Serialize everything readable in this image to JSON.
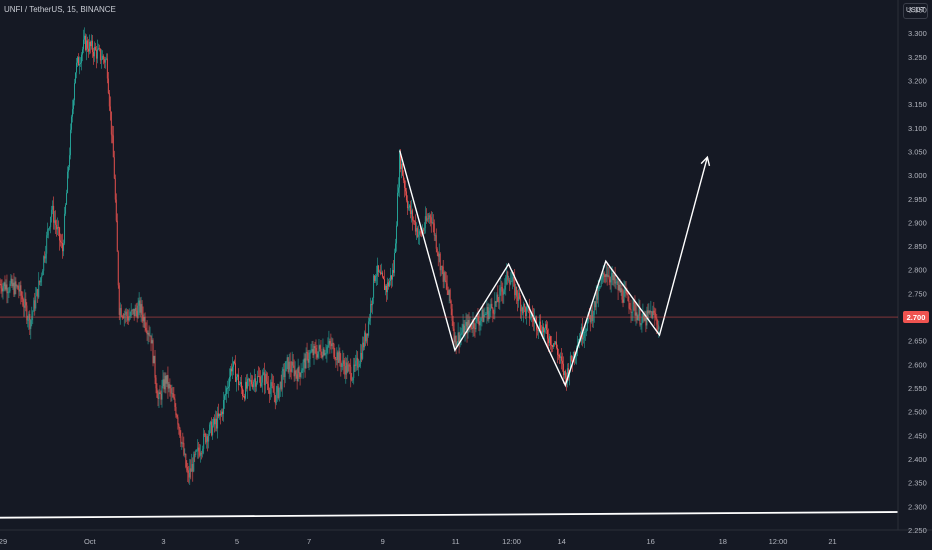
{
  "header": {
    "symbol": "UNFI / TetherUS",
    "interval": "15",
    "exchange": "BINANCE",
    "text": "UNFI / TetherUS, 15, BINANCE"
  },
  "currency": "USDT",
  "colors": {
    "background": "#151924",
    "up": "#26a69a",
    "down": "#ef5350",
    "price_line": "#ef5350",
    "drawing": "#ffffff",
    "axis_text": "#b2b5be"
  },
  "chart_data": {
    "type": "candlestick",
    "title": "",
    "xlabel": "",
    "ylabel": "",
    "ylim": [
      2.25,
      3.37
    ],
    "xlim": [
      0,
      122
    ],
    "grid": false,
    "y_ticks": [
      "3.350",
      "3.300",
      "3.250",
      "3.200",
      "3.150",
      "3.100",
      "3.050",
      "3.000",
      "2.950",
      "2.900",
      "2.850",
      "2.800",
      "2.750",
      "2.700",
      "2.650",
      "2.600",
      "2.550",
      "2.500",
      "2.450",
      "2.400",
      "2.350",
      "2.300",
      "2.250"
    ],
    "x_ticks": [
      {
        "label": "29",
        "x": 0.4
      },
      {
        "label": "Oct",
        "x": 12.2
      },
      {
        "label": "3",
        "x": 22.2
      },
      {
        "label": "5",
        "x": 32.2
      },
      {
        "label": "7",
        "x": 42.0
      },
      {
        "label": "9",
        "x": 52.0
      },
      {
        "label": "11",
        "x": 61.9
      },
      {
        "label": "12:00",
        "x": 69.5
      },
      {
        "label": "14",
        "x": 76.3
      },
      {
        "label": "16",
        "x": 88.4
      },
      {
        "label": "18",
        "x": 98.2
      },
      {
        "label": "12:00",
        "x": 105.7
      },
      {
        "label": "21",
        "x": 113.1
      }
    ],
    "last_price": {
      "value": 2.7,
      "label": "2.700"
    },
    "support_line": [
      [
        0,
        2.276
      ],
      [
        122,
        2.288
      ]
    ],
    "pattern_path": [
      [
        54.3,
        3.052
      ],
      [
        61.8,
        2.63
      ],
      [
        69.1,
        2.812
      ],
      [
        76.8,
        2.556
      ],
      [
        82.3,
        2.818
      ],
      [
        89.6,
        2.662
      ],
      [
        96.1,
        3.038
      ]
    ],
    "arrow_tip": [
      96.1,
      3.038
    ],
    "price_path": [
      [
        0,
        2.77
      ],
      [
        2.5,
        2.76
      ],
      [
        4.1,
        2.69
      ],
      [
        5.5,
        2.78
      ],
      [
        7.0,
        2.93
      ],
      [
        8.5,
        2.84
      ],
      [
        9.4,
        3.04
      ],
      [
        10.2,
        3.22
      ],
      [
        11.5,
        3.28
      ],
      [
        13.0,
        3.26
      ],
      [
        14.5,
        3.24
      ],
      [
        15.5,
        3.01
      ],
      [
        16.2,
        2.72
      ],
      [
        17.5,
        2.7
      ],
      [
        19.0,
        2.72
      ],
      [
        20.5,
        2.66
      ],
      [
        21.5,
        2.52
      ],
      [
        22.5,
        2.57
      ],
      [
        24.0,
        2.5
      ],
      [
        25.5,
        2.36
      ],
      [
        26.5,
        2.4
      ],
      [
        28.0,
        2.45
      ],
      [
        30.0,
        2.49
      ],
      [
        31.5,
        2.6
      ],
      [
        33.0,
        2.54
      ],
      [
        34.5,
        2.57
      ],
      [
        36.0,
        2.57
      ],
      [
        37.5,
        2.53
      ],
      [
        39.0,
        2.6
      ],
      [
        40.5,
        2.58
      ],
      [
        42.0,
        2.62
      ],
      [
        43.5,
        2.63
      ],
      [
        45.0,
        2.64
      ],
      [
        46.5,
        2.6
      ],
      [
        48.0,
        2.58
      ],
      [
        49.0,
        2.62
      ],
      [
        50.0,
        2.68
      ],
      [
        51.0,
        2.8
      ],
      [
        52.5,
        2.76
      ],
      [
        53.5,
        2.8
      ],
      [
        54.3,
        3.04
      ],
      [
        55.5,
        2.93
      ],
      [
        57.0,
        2.87
      ],
      [
        58.5,
        2.92
      ],
      [
        60.0,
        2.8
      ],
      [
        61.2,
        2.73
      ],
      [
        61.8,
        2.65
      ],
      [
        63.5,
        2.68
      ],
      [
        65.5,
        2.7
      ],
      [
        67.5,
        2.73
      ],
      [
        69.1,
        2.79
      ],
      [
        71.0,
        2.72
      ],
      [
        73.5,
        2.68
      ],
      [
        75.5,
        2.64
      ],
      [
        76.8,
        2.57
      ],
      [
        78.5,
        2.65
      ],
      [
        80.5,
        2.71
      ],
      [
        82.3,
        2.8
      ],
      [
        84.0,
        2.76
      ],
      [
        86.0,
        2.72
      ],
      [
        87.5,
        2.69
      ],
      [
        88.5,
        2.71
      ],
      [
        89.6,
        2.68
      ]
    ]
  }
}
